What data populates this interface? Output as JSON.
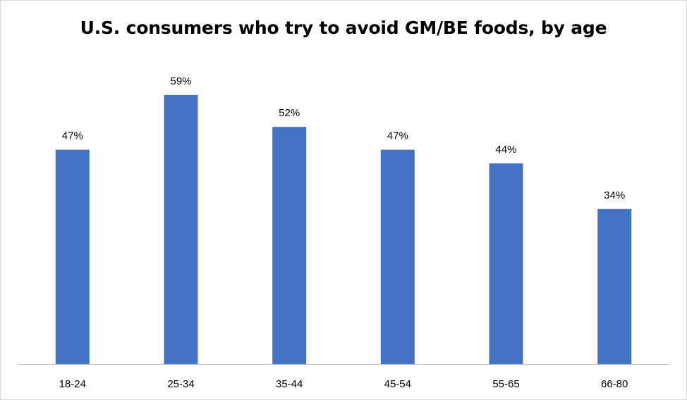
{
  "chart_data": {
    "type": "bar",
    "title": "U.S. consumers who try to avoid GM/BE foods, by age",
    "xlabel": "",
    "ylabel": "",
    "categories": [
      "18-24",
      "25-34",
      "35-44",
      "45-54",
      "55-65",
      "66-80"
    ],
    "values": [
      47,
      59,
      52,
      47,
      44,
      34
    ],
    "value_labels": [
      "47%",
      "59%",
      "52%",
      "47%",
      "44%",
      "34%"
    ],
    "unit": "%",
    "ylim": [
      0,
      65
    ],
    "grid": false,
    "legend": "none",
    "bar_color": "#4472C4",
    "axis_color": "#bfbfbf"
  }
}
